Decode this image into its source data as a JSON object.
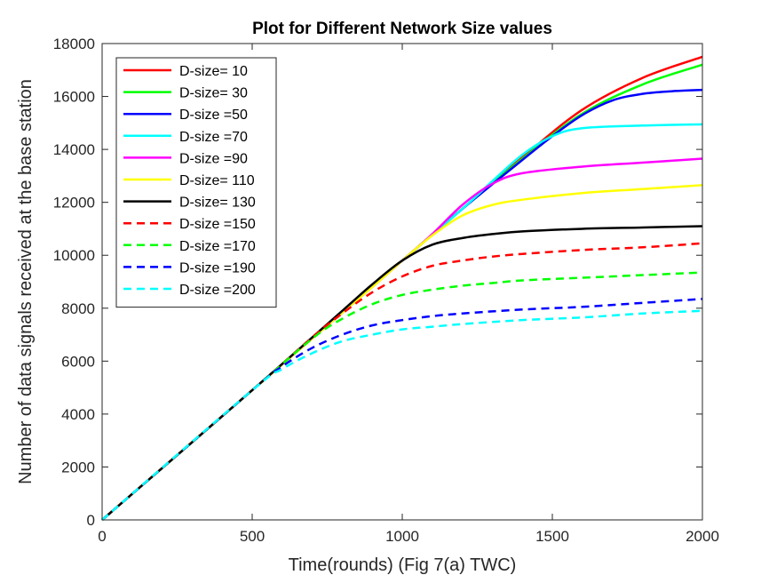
{
  "chart_data": {
    "type": "line",
    "title": "Plot for Different Network Size values",
    "xlabel": "Time(rounds) (Fig 7(a) TWC)",
    "ylabel": "Number of data signals received at the base station",
    "xlim": [
      0,
      2000
    ],
    "ylim": [
      0,
      18000
    ],
    "xticks": [
      "0",
      "500",
      "1000",
      "1500",
      "2000"
    ],
    "yticks": [
      "0",
      "2000",
      "4000",
      "6000",
      "8000",
      "10000",
      "12000",
      "14000",
      "16000",
      "18000"
    ],
    "grid": false,
    "legend_position": "top-left",
    "series": [
      {
        "name": "D-size= 10",
        "color": "#ff0000",
        "dash": "solid",
        "x": [
          0,
          500,
          1000,
          1200,
          1400,
          1600,
          1800,
          2000
        ],
        "y": [
          0,
          4900,
          9800,
          11750,
          13700,
          15500,
          16700,
          17500
        ]
      },
      {
        "name": "D-size= 30",
        "color": "#00ff00",
        "dash": "solid",
        "x": [
          0,
          500,
          1000,
          1200,
          1400,
          1600,
          1800,
          2000
        ],
        "y": [
          0,
          4900,
          9800,
          11750,
          13650,
          15350,
          16450,
          17200
        ]
      },
      {
        "name": "D-size =50",
        "color": "#0000ff",
        "dash": "solid",
        "x": [
          0,
          500,
          1000,
          1200,
          1400,
          1500,
          1600,
          1700,
          1800,
          1900,
          2000
        ],
        "y": [
          0,
          4900,
          9800,
          11750,
          13600,
          14500,
          15300,
          15850,
          16100,
          16200,
          16250
        ]
      },
      {
        "name": "D-size =70",
        "color": "#00ffff",
        "dash": "solid",
        "x": [
          0,
          500,
          1000,
          1200,
          1300,
          1400,
          1500,
          1600,
          1800,
          2000
        ],
        "y": [
          0,
          4900,
          9800,
          11750,
          12800,
          13800,
          14500,
          14800,
          14900,
          14950
        ]
      },
      {
        "name": "D-size =90",
        "color": "#ff00ff",
        "dash": "solid",
        "x": [
          0,
          500,
          900,
          1000,
          1100,
          1200,
          1300,
          1400,
          1600,
          1800,
          2000
        ],
        "y": [
          0,
          4900,
          8800,
          9800,
          10800,
          11900,
          12700,
          13100,
          13350,
          13500,
          13650
        ]
      },
      {
        "name": "D-size= 110",
        "color": "#ffff00",
        "dash": "solid",
        "x": [
          0,
          500,
          900,
          1000,
          1100,
          1200,
          1300,
          1400,
          1600,
          1800,
          2000
        ],
        "y": [
          0,
          4900,
          8800,
          9800,
          10750,
          11500,
          11900,
          12100,
          12350,
          12500,
          12650
        ]
      },
      {
        "name": "D-size= 130",
        "color": "#000000",
        "dash": "solid",
        "x": [
          0,
          500,
          800,
          900,
          1000,
          1100,
          1200,
          1300,
          1400,
          1600,
          1800,
          2000
        ],
        "y": [
          0,
          4900,
          7900,
          8900,
          9800,
          10400,
          10650,
          10800,
          10900,
          11000,
          11050,
          11100
        ]
      },
      {
        "name": "D-size =150",
        "color": "#ff0000",
        "dash": "dashed",
        "x": [
          0,
          500,
          700,
          800,
          900,
          1000,
          1100,
          1200,
          1300,
          1400,
          1600,
          1800,
          2000
        ],
        "y": [
          0,
          4900,
          6900,
          7800,
          8600,
          9200,
          9600,
          9800,
          9950,
          10050,
          10200,
          10300,
          10450
        ]
      },
      {
        "name": "D-size =170",
        "color": "#00ff00",
        "dash": "dashed",
        "x": [
          0,
          500,
          700,
          800,
          900,
          1000,
          1100,
          1200,
          1300,
          1400,
          1600,
          1800,
          2000
        ],
        "y": [
          0,
          4900,
          6850,
          7600,
          8150,
          8500,
          8700,
          8850,
          8950,
          9050,
          9150,
          9250,
          9350
        ]
      },
      {
        "name": "D-size =190",
        "color": "#0000ff",
        "dash": "dashed",
        "x": [
          0,
          500,
          600,
          700,
          800,
          900,
          1000,
          1100,
          1200,
          1400,
          1600,
          1800,
          2000
        ],
        "y": [
          0,
          4900,
          5800,
          6500,
          7000,
          7350,
          7550,
          7700,
          7800,
          7950,
          8050,
          8200,
          8350
        ]
      },
      {
        "name": "D-size =200",
        "color": "#00ffff",
        "dash": "dashed",
        "x": [
          0,
          500,
          600,
          700,
          800,
          900,
          1000,
          1100,
          1200,
          1400,
          1600,
          1800,
          2000
        ],
        "y": [
          0,
          4900,
          5700,
          6300,
          6750,
          7000,
          7200,
          7300,
          7400,
          7550,
          7650,
          7800,
          7900
        ]
      }
    ]
  }
}
